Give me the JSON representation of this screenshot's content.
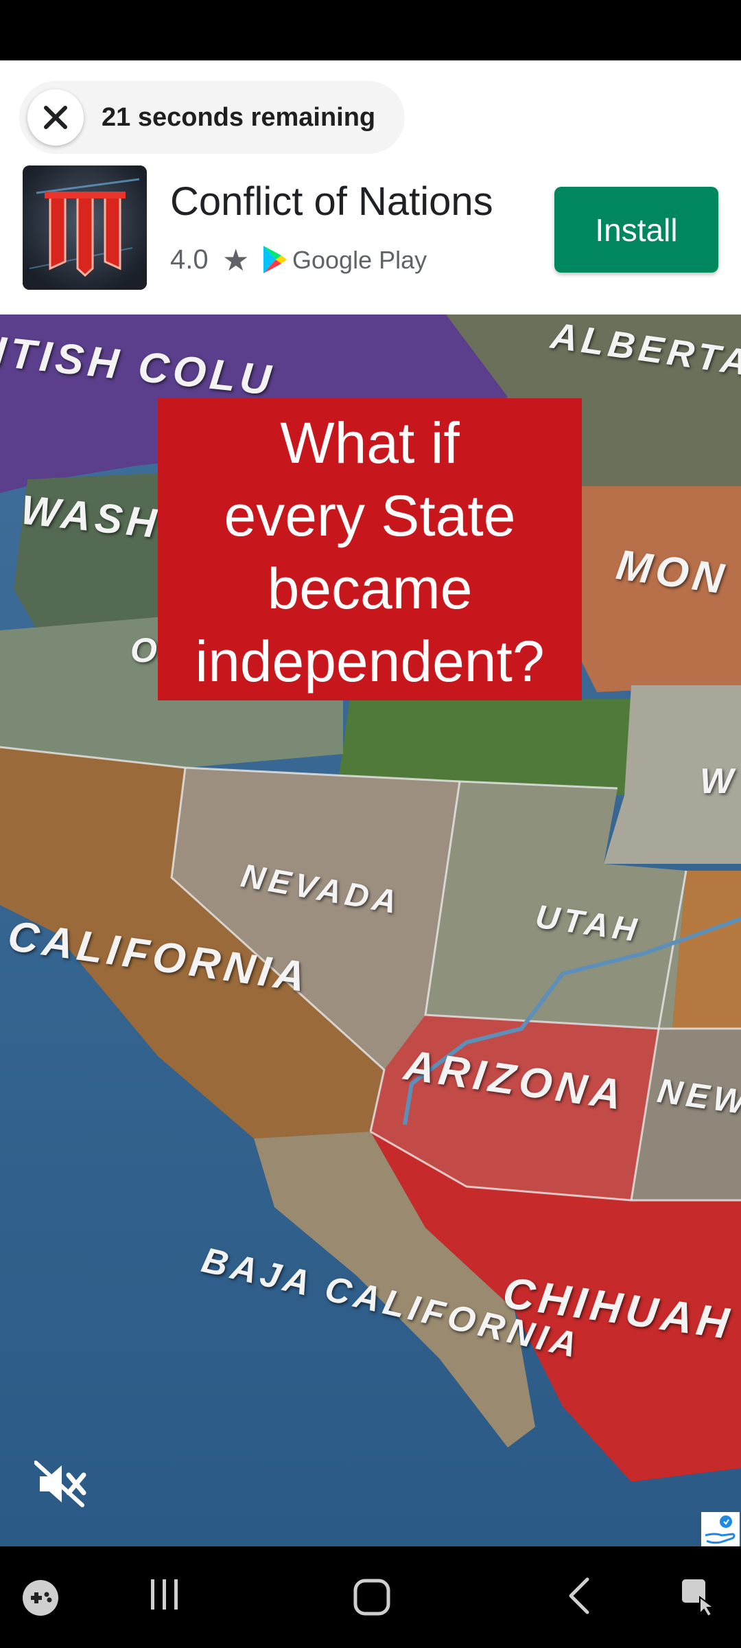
{
  "ad": {
    "timer_text": "21 seconds remaining",
    "app_name": "Conflict of Nations",
    "rating": "4.0",
    "store_name": "Google Play",
    "install_label": "Install"
  },
  "video": {
    "headline_lines": [
      "What if",
      "every State",
      "became",
      "independent?"
    ],
    "map_labels": {
      "british_columbia": "ITISH COLU",
      "alberta": "ALBERTA",
      "washington": "WASH",
      "oregon": "O",
      "montana": "MON",
      "wyoming": "W",
      "nevada": "NEVADA",
      "utah": "UTAH",
      "california": "CALIFORNIA",
      "arizona": "ARIZONA",
      "new_mexico": "NEW",
      "baja_california": "BAJA CALIFORNIA",
      "chihuahua": "CHIHUAH"
    }
  },
  "colors": {
    "install": "#01875f",
    "headline_bg": "#c8161d"
  }
}
